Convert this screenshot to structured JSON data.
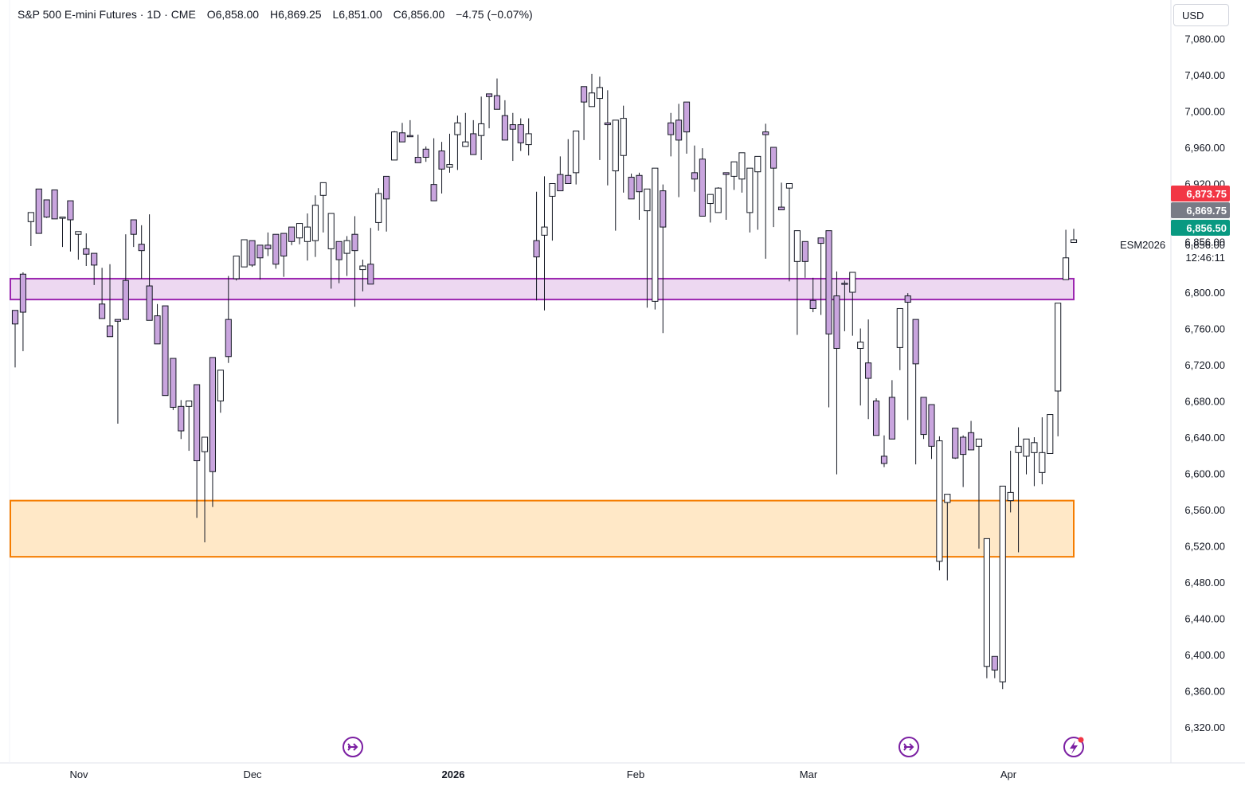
{
  "header": {
    "symbol": "S&P 500 E-mini Futures · 1D · CME",
    "open": "O6,858.00",
    "high": "H6,869.25",
    "low": "L6,851.00",
    "close": "C6,856.00",
    "change": "−4.75 (−0.07%)"
  },
  "currency": "USD",
  "price_tags": {
    "red": "6,873.75",
    "gray": "6,869.75",
    "green": "6,856.50",
    "last": "6,856.00",
    "countdown": "12:46:11",
    "ticker": "ESM2026"
  },
  "colors": {
    "up_fill": "#ffffff",
    "down_fill": "#c9a5de",
    "candle_border": "#131722",
    "resistance_zone": "#9c27b0",
    "support_zone": "#f57c00",
    "tag_red": "#f23645",
    "tag_gray": "#787b86",
    "tag_green": "#089981"
  },
  "icons": [
    "arrow-circle-icon",
    "arrow-circle-icon",
    "lightning-circle-icon"
  ],
  "chart_data": {
    "type": "candlestick",
    "title": "S&P 500 E-mini Futures · 1D · CME",
    "y_axis_ticks": [
      6320,
      6360,
      6400,
      6440,
      6480,
      6520,
      6560,
      6600,
      6640,
      6680,
      6720,
      6760,
      6800,
      6856,
      6920,
      6960,
      7000,
      7040,
      7080
    ],
    "x_axis_labels": [
      "Nov",
      "Dec",
      "2026",
      "Feb",
      "Mar",
      "Apr"
    ],
    "ylim": [
      6300,
      7090
    ],
    "zones": [
      {
        "kind": "resistance",
        "low": 6792,
        "high": 6815
      },
      {
        "kind": "support",
        "low": 6508,
        "high": 6570
      }
    ],
    "candles": [
      [
        6717,
        6780,
        6765,
        6730
      ],
      [
        6735,
        6820,
        6778,
        6822
      ],
      [
        6851,
        6878,
        6888,
        6855
      ],
      [
        6872,
        6914,
        6865,
        6890
      ],
      [
        6882,
        6902,
        6883,
        6895
      ],
      [
        6893,
        6913,
        6881,
        6907
      ],
      [
        6881,
        6883,
        6883,
        6850
      ],
      [
        6866,
        6901,
        6880,
        6845
      ],
      [
        6865,
        6864,
        6867,
        6836
      ],
      [
        6829,
        6848,
        6842,
        6865
      ],
      [
        6808,
        6843,
        6830,
        6819
      ],
      [
        6827,
        6787,
        6771,
        6825
      ],
      [
        6822,
        6763,
        6751,
        6831
      ],
      [
        6655,
        6770,
        6768,
        6767
      ],
      [
        6778,
        6813,
        6770,
        6864
      ],
      [
        6850,
        6880,
        6864,
        6880
      ],
      [
        6815,
        6853,
        6846,
        6874
      ],
      [
        6876,
        6807,
        6769,
        6886
      ],
      [
        6765,
        6774,
        6743,
        6787
      ],
      [
        6738,
        6785,
        6686,
        6782
      ],
      [
        6720,
        6727,
        6673,
        6670
      ],
      [
        6638,
        6674,
        6647,
        6681
      ],
      [
        6625,
        6674,
        6680,
        6629
      ],
      [
        6551,
        6698,
        6614,
        6630
      ],
      [
        6524,
        6624,
        6640,
        6555
      ],
      [
        6563,
        6728,
        6602,
        6674
      ],
      [
        6668,
        6680,
        6714,
        6667
      ],
      [
        6722,
        6770,
        6729,
        6818
      ],
      [
        6813,
        6815,
        6840,
        6831
      ],
      [
        6830,
        6828,
        6858,
        6841
      ],
      [
        6828,
        6857,
        6830,
        6843
      ],
      [
        6814,
        6852,
        6838,
        6836
      ],
      [
        6840,
        6852,
        6848,
        6866
      ],
      [
        6826,
        6864,
        6831,
        6838
      ],
      [
        6817,
        6865,
        6840,
        6864
      ],
      [
        6852,
        6872,
        6856,
        6872
      ],
      [
        6853,
        6860,
        6876,
        6858
      ],
      [
        6835,
        6856,
        6872,
        6887
      ],
      [
        6839,
        6857,
        6896,
        6907
      ],
      [
        6866,
        6907,
        6921,
        6917
      ],
      [
        6804,
        6848,
        6887,
        6806
      ],
      [
        6841,
        6856,
        6836,
        6810
      ],
      [
        6818,
        6843,
        6857,
        6862
      ],
      [
        6784,
        6864,
        6846,
        6884
      ],
      [
        6801,
        6825,
        6829,
        6836
      ],
      [
        6838,
        6831,
        6809,
        6871
      ],
      [
        6868,
        6877,
        6909,
        6915
      ],
      [
        6867,
        6928,
        6903,
        6917
      ],
      [
        6951,
        6946,
        6977,
        6978
      ],
      [
        6969,
        6976,
        6966,
        6987
      ],
      [
        6983,
        6973,
        6972,
        6990
      ],
      [
        6970,
        6949,
        6943,
        6974
      ],
      [
        6944,
        6958,
        6949,
        6961
      ],
      [
        6948,
        6919,
        6901,
        6970
      ],
      [
        6909,
        6956,
        6936,
        6966
      ],
      [
        6932,
        6938,
        6941,
        6975
      ],
      [
        6935,
        6974,
        6987,
        6995
      ],
      [
        6993,
        6961,
        6966,
        6998
      ],
      [
        6977,
        6975,
        6952,
        6990
      ],
      [
        6946,
        6973,
        6986,
        7016
      ],
      [
        6981,
        7019,
        7016,
        7019
      ],
      [
        7008,
        7017,
        7002,
        7036
      ],
      [
        7000,
        6995,
        6968,
        7012
      ],
      [
        6945,
        6985,
        6980,
        6998
      ],
      [
        6956,
        6985,
        6965,
        6992
      ],
      [
        6951,
        6963,
        6975,
        6992
      ],
      [
        6791,
        6857,
        6839,
        6911
      ],
      [
        6780,
        6863,
        6872,
        6928
      ],
      [
        6857,
        6906,
        6920,
        6918
      ],
      [
        6938,
        6930,
        6912,
        6950
      ],
      [
        6947,
        6929,
        6920,
        6969
      ],
      [
        6919,
        6932,
        6978,
        6975
      ],
      [
        6968,
        7027,
        7010,
        7010
      ],
      [
        7029,
        7005,
        7020,
        7041
      ],
      [
        6946,
        7014,
        7026,
        7038
      ],
      [
        6918,
        6987,
        6985,
        7023
      ],
      [
        6868,
        6934,
        6990,
        6944
      ],
      [
        6910,
        6951,
        6992,
        7006
      ],
      [
        6931,
        6927,
        6903,
        6905
      ],
      [
        6880,
        6929,
        6911,
        6932
      ],
      [
        6783,
        6890,
        6914,
        6829
      ],
      [
        6781,
        6790,
        6937,
        6914
      ],
      [
        6755,
        6912,
        6872,
        6919
      ],
      [
        6950,
        6987,
        6974,
        6998
      ],
      [
        6905,
        6990,
        6968,
        7008
      ],
      [
        6953,
        7010,
        6977,
        6984
      ],
      [
        6911,
        6932,
        6925,
        6962
      ],
      [
        6910,
        6947,
        6884,
        6959
      ],
      [
        6877,
        6898,
        6908,
        6883
      ],
      [
        6905,
        6888,
        6915,
        6916
      ],
      [
        6880,
        6932,
        6930,
        6932
      ],
      [
        6919,
        6928,
        6944,
        6913
      ],
      [
        6923,
        6925,
        6954,
        6910
      ],
      [
        6866,
        6888,
        6937,
        6916
      ],
      [
        6869,
        6933,
        6950,
        6918
      ],
      [
        6837,
        6977,
        6974,
        6986
      ],
      [
        6872,
        6960,
        6937,
        6957
      ],
      [
        6921,
        6894,
        6891,
        6903
      ],
      [
        6812,
        6915,
        6920,
        6906
      ],
      [
        6753,
        6834,
        6868,
        6833
      ],
      [
        6844,
        6856,
        6834,
        6816
      ],
      [
        6778,
        6791,
        6782,
        6816
      ],
      [
        6775,
        6860,
        6854,
        6801
      ],
      [
        6673,
        6868,
        6754,
        6812
      ],
      [
        6599,
        6796,
        6738,
        6823
      ],
      [
        6757,
        6810,
        6809,
        6813
      ],
      [
        6752,
        6800,
        6822,
        6822
      ],
      [
        6675,
        6738,
        6745,
        6760
      ],
      [
        6660,
        6722,
        6705,
        6770
      ],
      [
        6643,
        6680,
        6642,
        6683
      ],
      [
        6607,
        6619,
        6611,
        6642
      ],
      [
        6650,
        6684,
        6638,
        6703
      ],
      [
        6727,
        6739,
        6782,
        6714
      ],
      [
        6659,
        6796,
        6789,
        6799
      ],
      [
        6610,
        6770,
        6721,
        6677
      ],
      [
        6638,
        6684,
        6643,
        6671
      ],
      [
        6616,
        6676,
        6630,
        6635
      ],
      [
        6493,
        6503,
        6636,
        6641
      ],
      [
        6482,
        6568,
        6577,
        6545
      ],
      [
        6616,
        6650,
        6617,
        6632
      ],
      [
        6585,
        6640,
        6621,
        6642
      ],
      [
        6630,
        6645,
        6626,
        6658
      ],
      [
        6517,
        6630,
        6638,
        6628
      ],
      [
        6374,
        6387,
        6528,
        6515
      ],
      [
        6374,
        6398,
        6383,
        6384
      ],
      [
        6362,
        6370,
        6586,
        6386
      ],
      [
        6557,
        6570,
        6579,
        6625
      ],
      [
        6513,
        6623,
        6630,
        6651
      ],
      [
        6599,
        6619,
        6638,
        6636
      ],
      [
        6586,
        6623,
        6634,
        6640
      ],
      [
        6588,
        6601,
        6623,
        6662
      ],
      [
        6630,
        6622,
        6665,
        6663
      ],
      [
        6641,
        6691,
        6788,
        6720
      ],
      [
        6815,
        6814,
        6838,
        6869
      ],
      [
        6860,
        6855,
        6858,
        6870
      ]
    ]
  }
}
